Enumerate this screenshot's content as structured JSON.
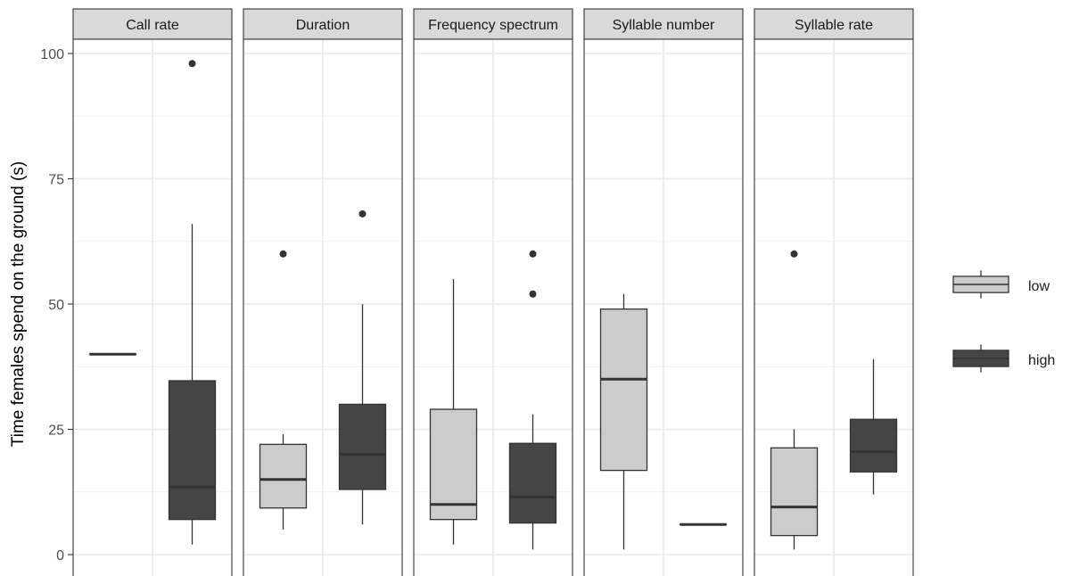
{
  "chart_data": {
    "type": "boxplot",
    "ylabel": "Time females spend on the ground (s)",
    "xlabel": "",
    "ylim": [
      0,
      100
    ],
    "yticks": [
      0,
      25,
      50,
      75,
      100
    ],
    "grid": true,
    "legend_position": "right",
    "series": [
      {
        "name": "low",
        "color": "#cccccc"
      },
      {
        "name": "high",
        "color": "#454545"
      }
    ],
    "panels": [
      {
        "title": "Call rate",
        "boxes": [
          {
            "group": "low",
            "whisker_low": 40,
            "q1": 40,
            "median": 40,
            "q3": 40,
            "whisker_high": 40,
            "outliers": []
          },
          {
            "group": "high",
            "whisker_low": 2,
            "q1": 7,
            "median": 13.5,
            "q3": 34.7,
            "whisker_high": 66,
            "outliers": [
              98
            ]
          }
        ]
      },
      {
        "title": "Duration",
        "boxes": [
          {
            "group": "low",
            "whisker_low": 5,
            "q1": 9.3,
            "median": 15,
            "q3": 22,
            "whisker_high": 24,
            "outliers": [
              60
            ]
          },
          {
            "group": "high",
            "whisker_low": 6,
            "q1": 13,
            "median": 20,
            "q3": 30,
            "whisker_high": 50,
            "outliers": [
              68
            ]
          }
        ]
      },
      {
        "title": "Frequency spectrum",
        "boxes": [
          {
            "group": "low",
            "whisker_low": 2,
            "q1": 7,
            "median": 10,
            "q3": 29,
            "whisker_high": 55,
            "outliers": []
          },
          {
            "group": "high",
            "whisker_low": 1,
            "q1": 6.3,
            "median": 11.5,
            "q3": 22.2,
            "whisker_high": 28,
            "outliers": [
              52,
              60
            ]
          }
        ]
      },
      {
        "title": "Syllable number",
        "boxes": [
          {
            "group": "low",
            "whisker_low": 1,
            "q1": 16.8,
            "median": 35,
            "q3": 49,
            "whisker_high": 52,
            "outliers": []
          },
          {
            "group": "high",
            "whisker_low": 6,
            "q1": 6,
            "median": 6,
            "q3": 6,
            "whisker_high": 6,
            "outliers": []
          }
        ]
      },
      {
        "title": "Syllable rate",
        "boxes": [
          {
            "group": "low",
            "whisker_low": 1,
            "q1": 3.8,
            "median": 9.5,
            "q3": 21.3,
            "whisker_high": 25,
            "outliers": [
              60
            ]
          },
          {
            "group": "high",
            "whisker_low": 12,
            "q1": 16.5,
            "median": 20.5,
            "q3": 27,
            "whisker_high": 39,
            "outliers": []
          }
        ]
      }
    ]
  }
}
